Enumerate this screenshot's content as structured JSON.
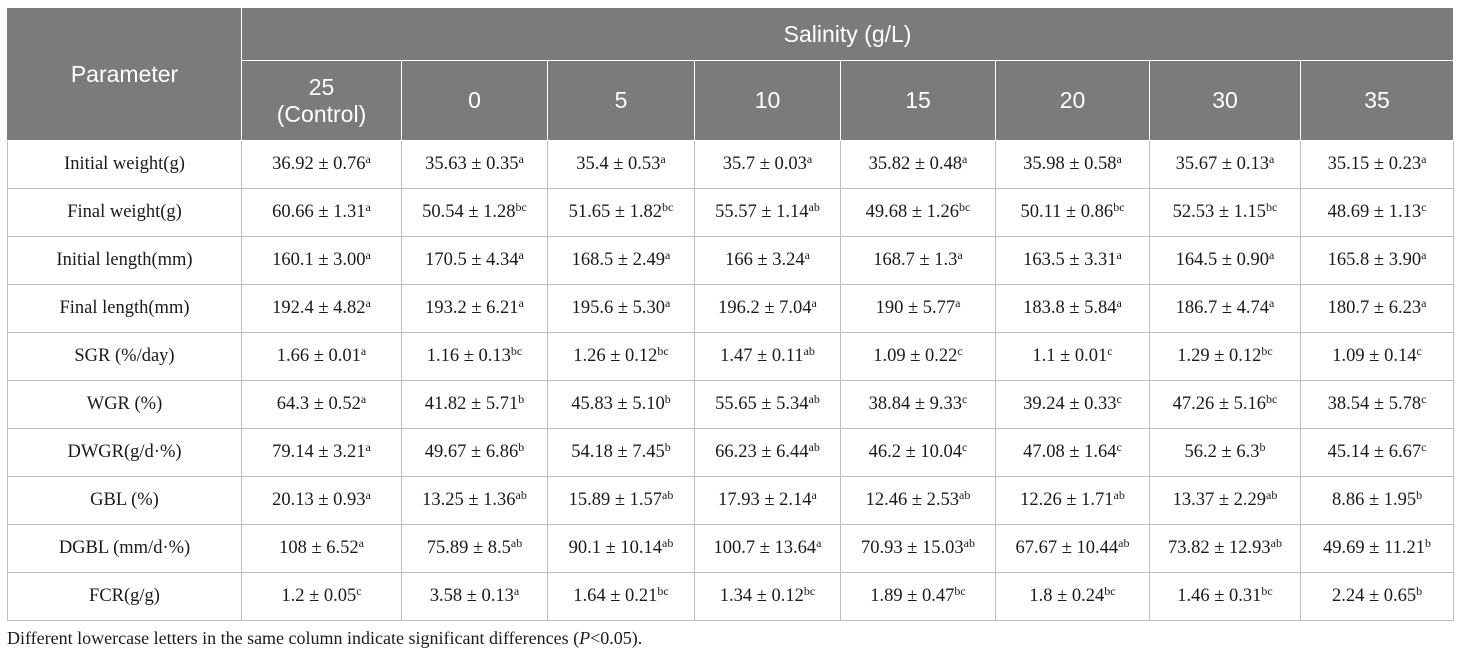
{
  "table": {
    "parameter_header": "Parameter",
    "group_header": "Salinity (g/L)",
    "columns": [
      {
        "line1": "25",
        "line2": "(Control)"
      },
      {
        "line1": "0",
        "line2": ""
      },
      {
        "line1": "5",
        "line2": ""
      },
      {
        "line1": "10",
        "line2": ""
      },
      {
        "line1": "15",
        "line2": ""
      },
      {
        "line1": "20",
        "line2": ""
      },
      {
        "line1": "30",
        "line2": ""
      },
      {
        "line1": "35",
        "line2": ""
      }
    ],
    "rows": [
      {
        "label": "Initial weight(g)",
        "cells": [
          {
            "v": "36.92 ± 0.76",
            "s": "a"
          },
          {
            "v": "35.63 ± 0.35",
            "s": "a"
          },
          {
            "v": "35.4 ± 0.53",
            "s": "a"
          },
          {
            "v": "35.7 ± 0.03",
            "s": "a"
          },
          {
            "v": "35.82 ± 0.48",
            "s": "a"
          },
          {
            "v": "35.98 ± 0.58",
            "s": "a"
          },
          {
            "v": "35.67 ± 0.13",
            "s": "a"
          },
          {
            "v": "35.15 ± 0.23",
            "s": "a"
          }
        ]
      },
      {
        "label": "Final weight(g)",
        "cells": [
          {
            "v": "60.66 ± 1.31",
            "s": "a"
          },
          {
            "v": "50.54 ± 1.28",
            "s": "bc"
          },
          {
            "v": "51.65 ± 1.82",
            "s": "bc"
          },
          {
            "v": "55.57 ± 1.14",
            "s": "ab"
          },
          {
            "v": "49.68 ± 1.26",
            "s": "bc"
          },
          {
            "v": "50.11 ± 0.86",
            "s": "bc"
          },
          {
            "v": "52.53 ± 1.15",
            "s": "bc"
          },
          {
            "v": "48.69 ± 1.13",
            "s": "c"
          }
        ]
      },
      {
        "label": "Initial length(mm)",
        "cells": [
          {
            "v": "160.1 ± 3.00",
            "s": "a"
          },
          {
            "v": "170.5 ± 4.34",
            "s": "a"
          },
          {
            "v": "168.5 ± 2.49",
            "s": "a"
          },
          {
            "v": "166 ± 3.24",
            "s": "a"
          },
          {
            "v": "168.7 ± 1.3",
            "s": "a"
          },
          {
            "v": "163.5 ± 3.31",
            "s": "a"
          },
          {
            "v": "164.5 ± 0.90",
            "s": "a"
          },
          {
            "v": "165.8 ± 3.90",
            "s": "a"
          }
        ]
      },
      {
        "label": "Final length(mm)",
        "cells": [
          {
            "v": "192.4 ± 4.82",
            "s": "a"
          },
          {
            "v": "193.2 ± 6.21",
            "s": "a"
          },
          {
            "v": "195.6 ± 5.30",
            "s": "a"
          },
          {
            "v": "196.2 ± 7.04",
            "s": "a"
          },
          {
            "v": "190 ± 5.77",
            "s": "a"
          },
          {
            "v": "183.8 ± 5.84",
            "s": "a"
          },
          {
            "v": "186.7 ± 4.74",
            "s": "a"
          },
          {
            "v": "180.7 ± 6.23",
            "s": "a"
          }
        ]
      },
      {
        "label": "SGR (%/day)",
        "cells": [
          {
            "v": "1.66 ± 0.01",
            "s": "a"
          },
          {
            "v": "1.16 ± 0.13",
            "s": "bc"
          },
          {
            "v": "1.26 ± 0.12",
            "s": "bc"
          },
          {
            "v": "1.47 ± 0.11",
            "s": "ab"
          },
          {
            "v": "1.09 ± 0.22",
            "s": "c"
          },
          {
            "v": "1.1 ± 0.01",
            "s": "c"
          },
          {
            "v": "1.29 ± 0.12",
            "s": "bc"
          },
          {
            "v": "1.09 ± 0.14",
            "s": "c"
          }
        ]
      },
      {
        "label": "WGR (%)",
        "cells": [
          {
            "v": "64.3 ± 0.52",
            "s": "a"
          },
          {
            "v": "41.82 ± 5.71",
            "s": "b"
          },
          {
            "v": "45.83 ± 5.10",
            "s": "b"
          },
          {
            "v": "55.65 ± 5.34",
            "s": "ab"
          },
          {
            "v": "38.84 ± 9.33",
            "s": "c"
          },
          {
            "v": "39.24 ± 0.33",
            "s": "c"
          },
          {
            "v": "47.26 ± 5.16",
            "s": "bc"
          },
          {
            "v": "38.54 ± 5.78",
            "s": "c"
          }
        ]
      },
      {
        "label": "DWGR(g/d·%)",
        "cells": [
          {
            "v": "79.14 ± 3.21",
            "s": "a"
          },
          {
            "v": "49.67 ± 6.86",
            "s": "b"
          },
          {
            "v": "54.18 ± 7.45",
            "s": "b"
          },
          {
            "v": "66.23 ± 6.44",
            "s": "ab"
          },
          {
            "v": "46.2 ± 10.04",
            "s": "c"
          },
          {
            "v": "47.08 ± 1.64",
            "s": "c"
          },
          {
            "v": "56.2 ± 6.3",
            "s": "b"
          },
          {
            "v": "45.14 ± 6.67",
            "s": "c"
          }
        ]
      },
      {
        "label": "GBL (%)",
        "cells": [
          {
            "v": "20.13 ± 0.93",
            "s": "a"
          },
          {
            "v": "13.25 ± 1.36",
            "s": "ab"
          },
          {
            "v": "15.89 ± 1.57",
            "s": "ab"
          },
          {
            "v": "17.93 ± 2.14",
            "s": "a"
          },
          {
            "v": "12.46 ± 2.53",
            "s": "ab"
          },
          {
            "v": "12.26 ± 1.71",
            "s": "ab"
          },
          {
            "v": "13.37 ± 2.29",
            "s": "ab"
          },
          {
            "v": "8.86 ± 1.95",
            "s": "b"
          }
        ]
      },
      {
        "label": "DGBL (mm/d·%)",
        "cells": [
          {
            "v": "108 ± 6.52",
            "s": "a"
          },
          {
            "v": "75.89 ± 8.5",
            "s": "ab"
          },
          {
            "v": "90.1 ± 10.14",
            "s": "ab"
          },
          {
            "v": "100.7 ± 13.64",
            "s": "a"
          },
          {
            "v": "70.93 ± 15.03",
            "s": "ab"
          },
          {
            "v": "67.67 ± 10.44",
            "s": "ab"
          },
          {
            "v": "73.82 ± 12.93",
            "s": "ab"
          },
          {
            "v": "49.69 ± 11.21",
            "s": "b"
          }
        ]
      },
      {
        "label": "FCR(g/g)",
        "cells": [
          {
            "v": "1.2 ± 0.05",
            "s": "c"
          },
          {
            "v": "3.58 ± 0.13",
            "s": "a"
          },
          {
            "v": "1.64 ± 0.21",
            "s": "bc"
          },
          {
            "v": "1.34 ± 0.12",
            "s": "bc"
          },
          {
            "v": "1.89 ± 0.47",
            "s": "bc"
          },
          {
            "v": "1.8 ± 0.24",
            "s": "bc"
          },
          {
            "v": "1.46 ± 0.31",
            "s": "bc"
          },
          {
            "v": "2.24 ± 0.65",
            "s": "b"
          }
        ]
      }
    ]
  },
  "footnote": {
    "text_before": "Different lowercase letters in the same column indicate significant differences (",
    "p_symbol": "P",
    "text_after": "<0.05)."
  },
  "colors": {
    "header_bg": "#7b7b7b",
    "header_text": "#ffffff",
    "grid": "#bdbdbd"
  }
}
